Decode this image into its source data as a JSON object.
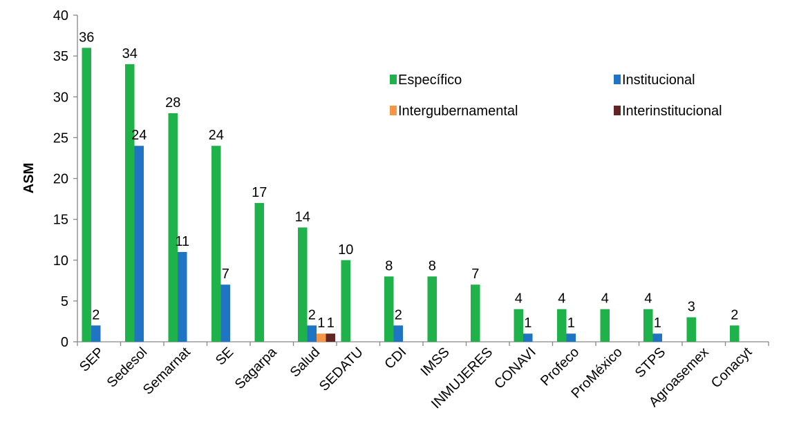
{
  "chart_data": {
    "type": "bar",
    "ylabel": "ASM",
    "ylim": [
      0,
      40
    ],
    "yticks": [
      0,
      5,
      10,
      15,
      20,
      25,
      30,
      35,
      40
    ],
    "grid": false,
    "legend_position": "top-right",
    "categories": [
      "SEP",
      "Sedesol",
      "Semarnat",
      "SE",
      "Sagarpa",
      "Salud",
      "SEDATU",
      "CDI",
      "IMSS",
      "INMUJERES",
      "CONAVI",
      "Profeco",
      "ProMéxico",
      "STPS",
      "Agroasemex",
      "Conacyt"
    ],
    "series": [
      {
        "name": "Específico",
        "color": "#1FB24A",
        "values": [
          36,
          34,
          28,
          24,
          17,
          14,
          10,
          8,
          8,
          7,
          4,
          4,
          4,
          4,
          3,
          2
        ]
      },
      {
        "name": "Institucional",
        "color": "#1F75C4",
        "values": [
          2,
          24,
          11,
          7,
          null,
          2,
          null,
          2,
          null,
          null,
          1,
          1,
          null,
          1,
          null,
          null
        ]
      },
      {
        "name": "Intergubernamental",
        "color": "#F79646",
        "values": [
          null,
          null,
          null,
          null,
          null,
          1,
          null,
          null,
          null,
          null,
          null,
          null,
          null,
          null,
          null,
          null
        ]
      },
      {
        "name": "Interinstitucional",
        "color": "#632523",
        "values": [
          null,
          null,
          null,
          null,
          null,
          1,
          null,
          null,
          null,
          null,
          null,
          null,
          null,
          null,
          null,
          null
        ]
      }
    ]
  }
}
